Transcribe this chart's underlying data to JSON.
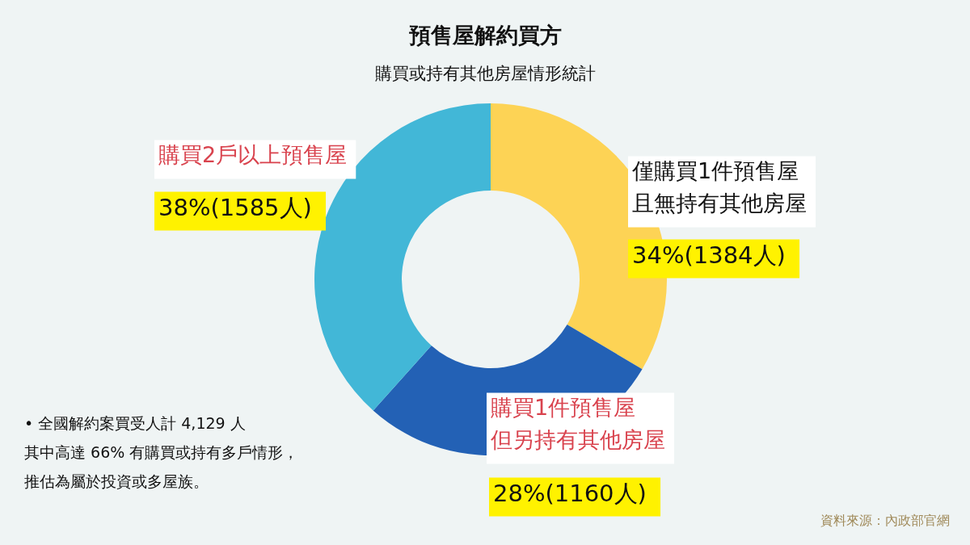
{
  "chart_data": {
    "type": "donut",
    "title": "預售屋解約買方",
    "subtitle": "購買或持有其他房屋情形統計",
    "categories": [
      "僅購買1件預售屋且無持有其他房屋",
      "購買1件預售屋但另持有其他房屋",
      "購買2戶以上預售屋"
    ],
    "values": [
      1384,
      1160,
      1585
    ],
    "value_labels": [
      "34%(1384人)",
      "28%(1160人)",
      "38%(1585人)"
    ],
    "colors": [
      "#fdd355",
      "#2361b5",
      "#42b7d7"
    ],
    "annotations": [
      "•  全國解約案買受人計 4,129 人其中高達 66% 有購買或持有多戶情形，推估為屬於投資或多屋族。",
      "資料來源：內政部官網"
    ]
  }
}
